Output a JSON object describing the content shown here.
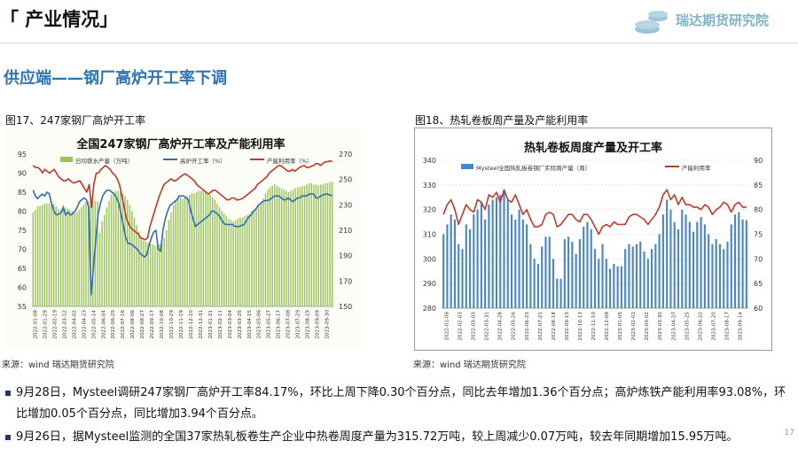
{
  "header": {
    "title": "「 产业情况」",
    "logo_text": "瑞达期货研究院"
  },
  "section_title": "供应端——钢厂高炉开工率下调",
  "figures": {
    "fig17_caption": "图17、247家钢厂高炉开工率",
    "fig18_caption": "图18、热轧卷板周产量及产能利用率",
    "source1": "来源：wind   瑞达期货研究院",
    "source2": "来源：wind   瑞达期货研究院"
  },
  "paragraphs": {
    "p1": "9月28日，Mysteel调研247家钢厂高炉开工率84.17%，环比上周下降0.30个百分点，同比去年增加1.36个百分点；高炉炼铁产能利用率93.08%，环比增加0.05个百分点，同比增加3.94个百分点。",
    "p2": "9月26日，据Mysteel监测的全国37家热轧板卷生产企业中热卷周度产量为315.72万吨，较上周减少0.07万吨，较去年同期增加15.95万吨。"
  },
  "page_number": "17",
  "colors": {
    "accent_blue": "#2e75b6",
    "bar_green": "#9bc45a",
    "line_blue": "#2f6db5",
    "line_red": "#c0392b",
    "bar_blue": "#4a86c8"
  },
  "chart_data": [
    {
      "type": "bar+line",
      "title": "全国247家钢厂高炉开工率及产能利用率",
      "legend": [
        "日均铁水产量（万吨）",
        "高炉开工率（%）",
        "产能利用率（%）"
      ],
      "left_axis": {
        "min": 55,
        "max": 95,
        "ticks": [
          55,
          60,
          65,
          70,
          75,
          80,
          85,
          90,
          95
        ]
      },
      "right_axis": {
        "min": 150,
        "max": 270,
        "ticks": [
          150,
          170,
          190,
          210,
          230,
          250,
          270
        ]
      },
      "x_tick_labels": [
        "2022-01-08",
        "2022-01-29",
        "2022-02-19",
        "2022-03-12",
        "2022-04-02",
        "2022-04-23",
        "2022-05-14",
        "2022-06-04",
        "2022-06-25",
        "2022-07-16",
        "2022-08-06",
        "2022-08-27",
        "2022-09-17",
        "2022-10-08",
        "2022-10-29",
        "2022-11-19",
        "2022-12-10",
        "2022-12-31",
        "2023-01-21",
        "2023-02-11",
        "2023-03-04",
        "2023-03-25",
        "2023-04-15",
        "2023-05-06",
        "2023-05-27",
        "2023-06-17",
        "2023-07-08",
        "2023-07-29",
        "2023-08-19",
        "2023-09-09",
        "2023-09-30"
      ],
      "series": [
        {
          "name": "日均铁水产量（万吨）",
          "axis": "right",
          "kind": "bar",
          "values": [
            224,
            226,
            229,
            229,
            230,
            231,
            231,
            231,
            232,
            231,
            229,
            227,
            226,
            230,
            228,
            227,
            226,
            225,
            224,
            224,
            226,
            228,
            230,
            232,
            233,
            234,
            234,
            233,
            233,
            208,
            217,
            222,
            228,
            233,
            238,
            240,
            241,
            241,
            240,
            239,
            237,
            234,
            230,
            225,
            220,
            214,
            209,
            204,
            202,
            201,
            200,
            199,
            199,
            198,
            198,
            199,
            200,
            204,
            210,
            218,
            224,
            230,
            234,
            235,
            236,
            235,
            236,
            237,
            238,
            239,
            239,
            240,
            241,
            241,
            242,
            241,
            239,
            238,
            236,
            234,
            231,
            228,
            225,
            223,
            221,
            219,
            218,
            217,
            218,
            219,
            220,
            220,
            221,
            222,
            223,
            225,
            226,
            227,
            229,
            232,
            235,
            239,
            242,
            244,
            245,
            246,
            245,
            244,
            243,
            242,
            241,
            240,
            241,
            242,
            243,
            244,
            244,
            245,
            245,
            246,
            247,
            247,
            246,
            246,
            245,
            246,
            246,
            247,
            247,
            248,
            248
          ]
        },
        {
          "name": "高炉开工率（%）",
          "axis": "left",
          "kind": "line",
          "values": [
            85.5,
            84,
            83.3,
            84,
            84.5,
            84,
            85,
            84.5,
            82,
            80,
            79,
            79.2,
            79.5,
            81,
            79,
            79.8,
            79,
            79.3,
            80,
            81,
            82.5,
            83,
            83.5,
            83,
            81,
            58,
            65,
            72,
            79,
            82,
            84,
            85,
            85.5,
            85.5,
            85,
            84.5,
            83.5,
            82,
            79,
            76,
            73,
            71.5,
            71.5,
            71,
            70.5,
            70,
            69,
            68.5,
            68,
            68.5,
            71,
            73,
            74.5,
            75,
            70,
            69.5,
            75,
            78,
            80,
            81.5,
            82,
            82.5,
            83,
            84,
            84,
            84,
            83.5,
            83,
            80,
            78,
            76,
            76.5,
            77,
            77.5,
            78,
            78.5,
            79,
            80,
            80,
            79.5,
            79,
            78,
            77,
            76.5,
            76.5,
            76.5,
            76.5,
            76,
            76,
            76,
            76.3,
            76.5,
            77.5,
            78.5,
            79,
            80,
            80.5,
            81.5,
            82,
            82.5,
            82.8,
            82.8,
            83,
            83.5,
            84,
            84,
            84,
            83.5,
            83,
            83,
            83.5,
            83,
            82.5,
            83,
            83.5,
            83.5,
            84,
            84,
            84,
            84.5,
            84.5,
            84.5,
            83.5,
            83.5,
            84,
            84.2,
            84.5,
            84.5,
            84.2,
            84.17
          ]
        },
        {
          "name": "产能利用率（%）",
          "axis": "left",
          "kind": "line",
          "values": [
            92,
            91.5,
            91.5,
            91,
            90,
            91,
            90.5,
            90,
            90.5,
            91,
            90,
            89,
            88.5,
            88,
            88,
            88.5,
            88,
            87.5,
            87.5,
            87.8,
            88,
            87,
            86,
            85,
            87,
            81,
            87,
            90,
            90,
            91,
            91.5,
            92,
            91.5,
            91,
            90,
            89.5,
            88.5,
            87,
            84,
            81,
            78,
            76.5,
            75.5,
            75,
            74.5,
            74,
            73,
            72.8,
            72.5,
            73,
            76,
            78,
            80,
            82,
            84,
            85.5,
            87,
            87.5,
            88,
            88.5,
            88,
            88,
            88.5,
            89,
            89.5,
            89.8,
            89.5,
            89,
            88.5,
            88,
            87,
            86.5,
            86,
            85.5,
            85,
            84.5,
            85,
            85.5,
            85.5,
            85,
            84.5,
            84,
            83.5,
            83,
            83,
            83.5,
            83.5,
            83,
            83,
            83.2,
            83.5,
            84,
            84.5,
            85,
            85.5,
            86,
            87,
            87.5,
            88,
            88.5,
            89,
            90,
            90.5,
            91,
            91.5,
            92,
            92,
            91.5,
            91,
            90.5,
            90.5,
            91,
            90.5,
            91,
            91.5,
            91.8,
            92,
            91.5,
            91.5,
            91.8,
            92,
            92.5,
            92.5,
            92,
            92.5,
            93,
            93,
            93.2,
            93.08
          ]
        }
      ]
    },
    {
      "type": "bar+line",
      "title": "热轧卷板周度产量及开工率",
      "legend": [
        "Mysteel全国热轧板卷钢厂实际周产量（周）",
        "产能利用率"
      ],
      "left_axis": {
        "min": 280,
        "max": 340,
        "ticks": [
          280,
          290,
          300,
          310,
          320,
          330,
          340
        ]
      },
      "right_axis": {
        "min": 60,
        "max": 90,
        "ticks": [
          60,
          65,
          70,
          75,
          80,
          85,
          90
        ]
      },
      "x_tick_labels": [
        "2022-01-06",
        "2022-02-03",
        "2022-03-03",
        "2022-03-31",
        "2022-04-28",
        "2022-05-26",
        "2022-06-23",
        "2022-07-21",
        "2022-08-18",
        "2022-09-15",
        "2022-10-13",
        "2022-11-10",
        "2022-12-08",
        "2023-01-05",
        "2023-02-02",
        "2023-03-02",
        "2023-03-30",
        "2023-04-27",
        "2023-05-25",
        "2023-06-22",
        "2023-07-20",
        "2023-08-17",
        "2023-09-14"
      ],
      "series": [
        {
          "name": "Mysteel全国热轧板卷钢厂实际周产量（周）",
          "axis": "left",
          "kind": "bar",
          "values": [
            310,
            314,
            318,
            316,
            306,
            304,
            314,
            312,
            318,
            320,
            323,
            316,
            322,
            324,
            325,
            326,
            327,
            324,
            318,
            316,
            320,
            316,
            314,
            306,
            300,
            298,
            305,
            309,
            309,
            300,
            292,
            292,
            308,
            309,
            307,
            302,
            308,
            313,
            315,
            312,
            304,
            300,
            306,
            300,
            296,
            298,
            297,
            297,
            304,
            306,
            305,
            306,
            307,
            303,
            300,
            304,
            306,
            310,
            318,
            324,
            320,
            315,
            312,
            320,
            318,
            315,
            311,
            315,
            317,
            314,
            310,
            306,
            308,
            306,
            304,
            307,
            314,
            318,
            319,
            316,
            315.72
          ]
        },
        {
          "name": "产能利用率",
          "axis": "right",
          "kind": "line",
          "values": [
            79,
            81,
            82,
            80,
            77,
            79,
            81,
            80,
            79.5,
            82,
            81.5,
            80,
            83,
            82.5,
            83.5,
            81.5,
            84,
            82,
            81.5,
            83,
            81,
            79,
            80,
            78,
            76.5,
            76.5,
            77,
            79,
            79.5,
            79,
            76.5,
            77,
            78,
            79,
            79,
            78,
            77.5,
            79,
            79,
            78,
            76.5,
            75,
            76.5,
            77,
            76.5,
            77.5,
            77,
            77,
            77,
            78.5,
            79,
            79,
            78.5,
            78,
            77,
            78,
            79,
            80.5,
            83,
            84,
            82,
            83,
            81,
            82.5,
            81,
            81,
            80.5,
            80.5,
            80,
            81,
            80.5,
            79,
            80,
            80.5,
            81.5,
            81,
            79.5,
            81,
            81.5,
            80.5,
            80.5
          ]
        }
      ]
    }
  ]
}
